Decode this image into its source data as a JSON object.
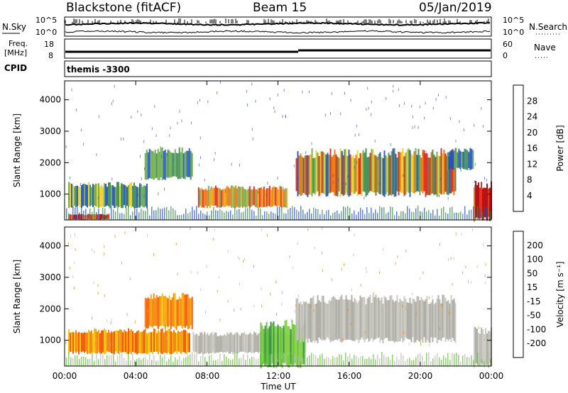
{
  "header": {
    "station": "Blackstone (fitACF)",
    "beam": "Beam 15",
    "date": "05/Jan/2019"
  },
  "panels": {
    "nsky_label": "N.Sky",
    "nsearch_label": "N.Search",
    "nsky_ticks": [
      "10^5",
      "10^0"
    ],
    "nsearch_ticks": [
      "10^5",
      "10^0"
    ],
    "freq_label_1": "Freq.",
    "freq_label_2": "[MHz]",
    "freq_ticks": [
      "18",
      "8"
    ],
    "nave_label": "Nave",
    "nave_ticks": [
      "60",
      "0"
    ],
    "cpid_label": "CPID",
    "cpid_value": "themis  -3300"
  },
  "colors": {
    "power": [
      "#1010e0",
      "#2050c0",
      "#3c8a50",
      "#6aa84a",
      "#f0d020",
      "#f0a000",
      "#f07000",
      "#e82010",
      "#b00000"
    ],
    "velocity": [
      "#e00000",
      "#f05000",
      "#f08000",
      "#f0c000",
      "#b8b8b0",
      "#60c030",
      "#309040",
      "#1050a0",
      "#0020c0"
    ]
  },
  "chart_data": [
    {
      "type": "heatmap",
      "quantity": "power",
      "ylabel": "Slant Range [km]",
      "ylim": [
        180,
        4600
      ],
      "yticks": [
        "4000",
        "3000",
        "2000",
        "1000"
      ],
      "xlim_hours": [
        0,
        24
      ],
      "colorbar": {
        "label": "Power [dB]",
        "ticks": [
          "28",
          "24",
          "20",
          "16",
          "12",
          "8",
          "4"
        ],
        "range": [
          0,
          32
        ]
      },
      "regions": [
        {
          "t0": 0.2,
          "t1": 4.6,
          "r0": 600,
          "r1": 1300,
          "level": "green-yellow"
        },
        {
          "t0": 0.2,
          "t1": 2.5,
          "r0": 200,
          "r1": 350,
          "level": "red"
        },
        {
          "t0": 4.5,
          "t1": 7.2,
          "r0": 1500,
          "r1": 2400,
          "level": "green"
        },
        {
          "t0": 7.5,
          "t1": 12.5,
          "r0": 600,
          "r1": 1200,
          "level": "orange"
        },
        {
          "t0": 13.0,
          "t1": 22.0,
          "r0": 1000,
          "r1": 2300,
          "level": "red-yellow"
        },
        {
          "t0": 21.5,
          "t1": 23.0,
          "r0": 1800,
          "r1": 2400,
          "level": "green"
        },
        {
          "t0": 23.0,
          "t1": 24.0,
          "r0": 200,
          "r1": 1300,
          "level": "red"
        }
      ]
    },
    {
      "type": "heatmap",
      "quantity": "velocity",
      "ylabel": "Slant Range [km]",
      "ylim": [
        180,
        4600
      ],
      "yticks": [
        "4000",
        "3000",
        "2000",
        "1000"
      ],
      "xlim_hours": [
        0,
        24
      ],
      "colorbar": {
        "label": "Velocity [m s⁻¹]",
        "ticks": [
          "200",
          "100",
          "50",
          "15",
          "-15",
          "-50",
          "-100",
          "-200"
        ],
        "range": [
          -250,
          250
        ]
      },
      "regions": [
        {
          "t0": 0.2,
          "t1": 7.0,
          "r0": 600,
          "r1": 1300,
          "level": "orange"
        },
        {
          "t0": 4.5,
          "t1": 7.2,
          "r0": 1400,
          "r1": 2400,
          "level": "orange"
        },
        {
          "t0": 7.2,
          "t1": 12.8,
          "r0": 600,
          "r1": 1200,
          "level": "grey"
        },
        {
          "t0": 11.0,
          "t1": 13.5,
          "r0": 200,
          "r1": 1500,
          "level": "green"
        },
        {
          "t0": 13.0,
          "t1": 22.0,
          "r0": 1000,
          "r1": 2300,
          "level": "grey"
        },
        {
          "t0": 23.0,
          "t1": 24.0,
          "r0": 200,
          "r1": 1300,
          "level": "grey"
        }
      ]
    }
  ],
  "xaxis": {
    "ticks": [
      "00:00",
      "04:00",
      "08:00",
      "12:00",
      "16:00",
      "20:00",
      "00:00"
    ],
    "label": "Time UT"
  }
}
